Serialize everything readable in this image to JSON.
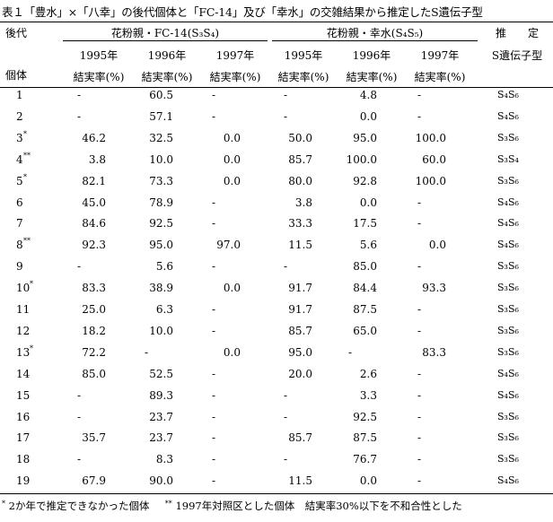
{
  "title": "表１「豊水」×「八幸」の後代個体と「FC-14」及び「幸水」の交雑結果から推定したS遺伝子型",
  "header": {
    "progeny": "後代",
    "individual": "個体",
    "group1": "花粉親・FC-14(S₃S₄)",
    "group2": "花粉親・幸水(S₄S₅)",
    "estimated_line1": "推　　定",
    "estimated_line2": "S遺伝子型",
    "years": [
      "1995年",
      "1996年",
      "1997年",
      "1995年",
      "1996年",
      "1997年"
    ],
    "rate": "結実率(%)"
  },
  "rows": [
    {
      "id": "1",
      "mark": "",
      "v": [
        "-",
        "60.5",
        "-",
        "-",
        "4.8",
        "-"
      ],
      "genotype": "S₄S₆"
    },
    {
      "id": "2",
      "mark": "",
      "v": [
        "-",
        "57.1",
        "-",
        "-",
        "0.0",
        "-"
      ],
      "genotype": "S₄S₆"
    },
    {
      "id": "3",
      "mark": "*",
      "v": [
        "46.2",
        "32.5",
        "0.0",
        "50.0",
        "95.0",
        "100.0"
      ],
      "genotype": "S₃S₆"
    },
    {
      "id": "4",
      "mark": "**",
      "v": [
        "3.8",
        "10.0",
        "0.0",
        "85.7",
        "100.0",
        "60.0"
      ],
      "genotype": "S₃S₄"
    },
    {
      "id": "5",
      "mark": "*",
      "v": [
        "82.1",
        "73.3",
        "0.0",
        "80.0",
        "92.8",
        "100.0"
      ],
      "genotype": "S₃S₆"
    },
    {
      "id": "6",
      "mark": "",
      "v": [
        "45.0",
        "78.9",
        "-",
        "3.8",
        "0.0",
        "-"
      ],
      "genotype": "S₄S₆"
    },
    {
      "id": "7",
      "mark": "",
      "v": [
        "84.6",
        "92.5",
        "-",
        "33.3",
        "17.5",
        "-"
      ],
      "genotype": "S₄S₆"
    },
    {
      "id": "8",
      "mark": "**",
      "v": [
        "92.3",
        "95.0",
        "97.0",
        "11.5",
        "5.6",
        "0.0"
      ],
      "genotype": "S₄S₆"
    },
    {
      "id": "9",
      "mark": "",
      "v": [
        "-",
        "5.6",
        "-",
        "-",
        "85.0",
        "-"
      ],
      "genotype": "S₃S₆"
    },
    {
      "id": "10",
      "mark": "*",
      "v": [
        "83.3",
        "38.9",
        "0.0",
        "91.7",
        "84.4",
        "93.3"
      ],
      "genotype": "S₃S₆"
    },
    {
      "id": "11",
      "mark": "",
      "v": [
        "25.0",
        "6.3",
        "-",
        "91.7",
        "87.5",
        "-"
      ],
      "genotype": "S₃S₆"
    },
    {
      "id": "12",
      "mark": "",
      "v": [
        "18.2",
        "10.0",
        "-",
        "85.7",
        "65.0",
        "-"
      ],
      "genotype": "S₃S₆"
    },
    {
      "id": "13",
      "mark": "*",
      "v": [
        "72.2",
        "-",
        "0.0",
        "95.0",
        "-",
        "83.3"
      ],
      "genotype": "S₃S₆"
    },
    {
      "id": "14",
      "mark": "",
      "v": [
        "85.0",
        "52.5",
        "-",
        "20.0",
        "2.6",
        "-"
      ],
      "genotype": "S₄S₆"
    },
    {
      "id": "15",
      "mark": "",
      "v": [
        "-",
        "89.3",
        "-",
        "-",
        "3.3",
        "-"
      ],
      "genotype": "S₄S₆"
    },
    {
      "id": "16",
      "mark": "",
      "v": [
        "-",
        "23.7",
        "-",
        "-",
        "92.5",
        "-"
      ],
      "genotype": "S₃S₆"
    },
    {
      "id": "17",
      "mark": "",
      "v": [
        "35.7",
        "23.7",
        "-",
        "85.7",
        "87.5",
        "-"
      ],
      "genotype": "S₃S₆"
    },
    {
      "id": "18",
      "mark": "",
      "v": [
        "-",
        "8.3",
        "-",
        "-",
        "76.7",
        "-"
      ],
      "genotype": "S₃S₆"
    },
    {
      "id": "19",
      "mark": "",
      "v": [
        "67.9",
        "90.0",
        "-",
        "11.5",
        "0.0",
        "-"
      ],
      "genotype": "S₄S₆"
    }
  ],
  "footnote": {
    "mark1": "*",
    "text1": "2か年で推定できなかった個体",
    "mark2": "**",
    "text2": "1997年対照区とした個体　結実率30%以下を不和合性とした"
  }
}
